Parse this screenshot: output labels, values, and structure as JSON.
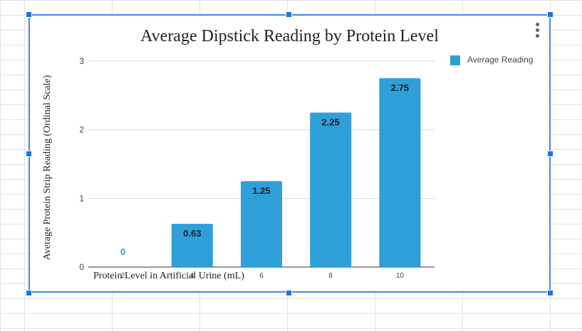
{
  "chart_data": {
    "type": "bar",
    "title": "Average Dipstick Reading by Protein Level",
    "xlabel": "Protein Level in Artificial Urine (mL)",
    "ylabel": "Average Protein Strip Reading (Ordinal Scale)",
    "categories": [
      "2",
      "4",
      "6",
      "8",
      "10"
    ],
    "series": [
      {
        "name": "Average Reading",
        "values": [
          0,
          0.63,
          1.25,
          2.25,
          2.75
        ]
      }
    ],
    "data_labels": [
      "0",
      "0.63",
      "1.25",
      "2.25",
      "2.75"
    ],
    "y_ticks": [
      "0",
      "1",
      "2",
      "3"
    ],
    "ylim": [
      0,
      3
    ],
    "grid": true,
    "legend_position": "top-right",
    "colors": {
      "bar": "#2f9fd9",
      "zero_label": "#2f9fd9",
      "selection": "#4285f4"
    }
  }
}
